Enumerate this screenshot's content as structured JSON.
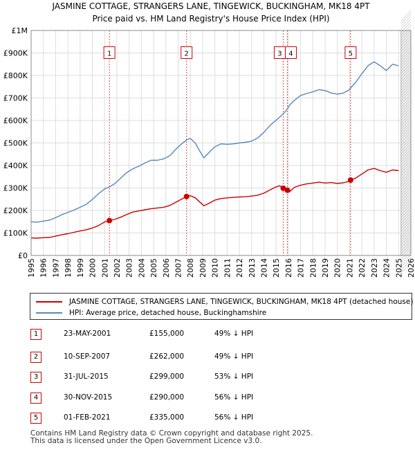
{
  "chart_data": {
    "type": "line",
    "title": "JASMINE COTTAGE, STRANGERS LANE, TINGEWICK, BUCKINGHAM, MK18 4PT",
    "subtitle": "Price paid vs. HM Land Registry's House Price Index (HPI)",
    "xlim": [
      1995,
      2026
    ],
    "ylim": [
      0,
      1000000
    ],
    "x_ticks": [
      "1995",
      "1996",
      "1997",
      "1998",
      "1999",
      "2000",
      "2001",
      "2002",
      "2003",
      "2004",
      "2005",
      "2006",
      "2007",
      "2008",
      "2009",
      "2010",
      "2011",
      "2012",
      "2013",
      "2014",
      "2015",
      "2016",
      "2017",
      "2018",
      "2019",
      "2020",
      "2021",
      "2022",
      "2023",
      "2024",
      "2025",
      "2026"
    ],
    "y_ticks": [
      {
        "value": 0,
        "label": "£0"
      },
      {
        "value": 100000,
        "label": "£100K"
      },
      {
        "value": 200000,
        "label": "£200K"
      },
      {
        "value": 300000,
        "label": "£300K"
      },
      {
        "value": 400000,
        "label": "£400K"
      },
      {
        "value": 500000,
        "label": "£500K"
      },
      {
        "value": 600000,
        "label": "£600K"
      },
      {
        "value": 700000,
        "label": "£700K"
      },
      {
        "value": 800000,
        "label": "£800K"
      },
      {
        "value": 900000,
        "label": "£900K"
      },
      {
        "value": 1000000,
        "label": "£1M"
      }
    ],
    "series": [
      {
        "name": "JASMINE COTTAGE, STRANGERS LANE, TINGEWICK, BUCKINGHAM, MK18 4PT (detached house)",
        "color": "#cc0000",
        "points": [
          [
            1995.0,
            78000
          ],
          [
            1995.5,
            77000
          ],
          [
            1996.0,
            79000
          ],
          [
            1996.5,
            80000
          ],
          [
            1997.0,
            86000
          ],
          [
            1997.5,
            92000
          ],
          [
            1998.0,
            97000
          ],
          [
            1998.5,
            103000
          ],
          [
            1999.0,
            109000
          ],
          [
            1999.5,
            114000
          ],
          [
            2000.0,
            122000
          ],
          [
            2000.5,
            133000
          ],
          [
            2001.0,
            149000
          ],
          [
            2001.4,
            155000
          ],
          [
            2001.8,
            160000
          ],
          [
            2002.3,
            170000
          ],
          [
            2002.8,
            182000
          ],
          [
            2003.3,
            193000
          ],
          [
            2003.8,
            198000
          ],
          [
            2004.3,
            203000
          ],
          [
            2004.8,
            208000
          ],
          [
            2005.3,
            211000
          ],
          [
            2005.8,
            214000
          ],
          [
            2006.3,
            222000
          ],
          [
            2006.8,
            236000
          ],
          [
            2007.2,
            248000
          ],
          [
            2007.7,
            262000
          ],
          [
            2008.0,
            266000
          ],
          [
            2008.4,
            256000
          ],
          [
            2008.8,
            236000
          ],
          [
            2009.1,
            221000
          ],
          [
            2009.5,
            231000
          ],
          [
            2010.0,
            246000
          ],
          [
            2010.5,
            253000
          ],
          [
            2011.0,
            256000
          ],
          [
            2011.5,
            258000
          ],
          [
            2012.0,
            260000
          ],
          [
            2012.5,
            261000
          ],
          [
            2013.0,
            264000
          ],
          [
            2013.5,
            268000
          ],
          [
            2014.0,
            277000
          ],
          [
            2014.5,
            291000
          ],
          [
            2015.0,
            305000
          ],
          [
            2015.3,
            310000
          ],
          [
            2015.58,
            299000
          ],
          [
            2015.75,
            295000
          ],
          [
            2015.92,
            290000
          ],
          [
            2016.1,
            283000
          ],
          [
            2016.5,
            303000
          ],
          [
            2017.0,
            312000
          ],
          [
            2017.5,
            318000
          ],
          [
            2018.0,
            322000
          ],
          [
            2018.5,
            326000
          ],
          [
            2019.0,
            322000
          ],
          [
            2019.5,
            324000
          ],
          [
            2020.0,
            320000
          ],
          [
            2020.5,
            323000
          ],
          [
            2021.0,
            330000
          ],
          [
            2021.08,
            335000
          ],
          [
            2021.5,
            344000
          ],
          [
            2022.0,
            362000
          ],
          [
            2022.5,
            380000
          ],
          [
            2023.0,
            387000
          ],
          [
            2023.5,
            377000
          ],
          [
            2024.0,
            370000
          ],
          [
            2024.5,
            380000
          ],
          [
            2025.0,
            377000
          ]
        ]
      },
      {
        "name": "HPI: Average price, detached house, Buckinghamshire",
        "color": "#5588bb",
        "points": [
          [
            1995.0,
            150000
          ],
          [
            1995.5,
            148000
          ],
          [
            1996.0,
            153000
          ],
          [
            1996.5,
            157000
          ],
          [
            1997.0,
            168000
          ],
          [
            1997.5,
            181000
          ],
          [
            1998.0,
            191000
          ],
          [
            1998.5,
            202000
          ],
          [
            1999.0,
            214000
          ],
          [
            1999.5,
            227000
          ],
          [
            2000.0,
            249000
          ],
          [
            2000.5,
            274000
          ],
          [
            2001.0,
            296000
          ],
          [
            2001.4,
            305000
          ],
          [
            2001.8,
            318000
          ],
          [
            2002.3,
            343000
          ],
          [
            2002.8,
            368000
          ],
          [
            2003.3,
            385000
          ],
          [
            2003.8,
            397000
          ],
          [
            2004.3,
            411000
          ],
          [
            2004.8,
            423000
          ],
          [
            2005.3,
            423000
          ],
          [
            2005.8,
            429000
          ],
          [
            2006.3,
            442000
          ],
          [
            2006.8,
            471000
          ],
          [
            2007.2,
            492000
          ],
          [
            2007.7,
            514000
          ],
          [
            2008.0,
            520000
          ],
          [
            2008.4,
            500000
          ],
          [
            2008.8,
            461000
          ],
          [
            2009.1,
            434000
          ],
          [
            2009.5,
            456000
          ],
          [
            2010.0,
            483000
          ],
          [
            2010.5,
            496000
          ],
          [
            2011.0,
            494000
          ],
          [
            2011.5,
            496000
          ],
          [
            2012.0,
            500000
          ],
          [
            2012.5,
            503000
          ],
          [
            2013.0,
            508000
          ],
          [
            2013.5,
            522000
          ],
          [
            2014.0,
            547000
          ],
          [
            2014.5,
            578000
          ],
          [
            2015.0,
            601000
          ],
          [
            2015.3,
            615000
          ],
          [
            2015.58,
            630000
          ],
          [
            2015.75,
            640000
          ],
          [
            2015.92,
            652000
          ],
          [
            2016.1,
            668000
          ],
          [
            2016.5,
            690000
          ],
          [
            2017.0,
            711000
          ],
          [
            2017.5,
            720000
          ],
          [
            2018.0,
            727000
          ],
          [
            2018.5,
            737000
          ],
          [
            2019.0,
            733000
          ],
          [
            2019.5,
            722000
          ],
          [
            2020.0,
            717000
          ],
          [
            2020.5,
            722000
          ],
          [
            2021.0,
            737000
          ],
          [
            2021.08,
            745000
          ],
          [
            2021.5,
            770000
          ],
          [
            2022.0,
            808000
          ],
          [
            2022.5,
            843000
          ],
          [
            2023.0,
            861000
          ],
          [
            2023.5,
            843000
          ],
          [
            2024.0,
            822000
          ],
          [
            2024.5,
            850000
          ],
          [
            2025.0,
            843000
          ]
        ]
      }
    ],
    "sales": [
      {
        "id": "1",
        "x": 2001.39,
        "price": 155000
      },
      {
        "id": "2",
        "x": 2007.69,
        "price": 262000
      },
      {
        "id": "3",
        "x": 2015.58,
        "price": 299000
      },
      {
        "id": "4",
        "x": 2015.92,
        "price": 290000
      },
      {
        "id": "5",
        "x": 2021.08,
        "price": 335000
      }
    ],
    "future_from": 2025.2
  },
  "legend": {
    "property_label": "JASMINE COTTAGE, STRANGERS LANE, TINGEWICK, BUCKINGHAM, MK18 4PT (detached house)",
    "hpi_label": "HPI: Average price, detached house, Buckinghamshire"
  },
  "table": {
    "rows": [
      {
        "num": "1",
        "date": "23-MAY-2001",
        "price": "£155,000",
        "hpi": "49% ↓ HPI"
      },
      {
        "num": "2",
        "date": "10-SEP-2007",
        "price": "£262,000",
        "hpi": "49% ↓ HPI"
      },
      {
        "num": "3",
        "date": "31-JUL-2015",
        "price": "£299,000",
        "hpi": "53% ↓ HPI"
      },
      {
        "num": "4",
        "date": "30-NOV-2015",
        "price": "£290,000",
        "hpi": "56% ↓ HPI"
      },
      {
        "num": "5",
        "date": "01-FEB-2021",
        "price": "£335,000",
        "hpi": "56% ↓ HPI"
      }
    ]
  },
  "footer": {
    "line1": "Contains HM Land Registry data © Crown copyright and database right 2025.",
    "line2": "This data is licensed under the Open Government Licence v3.0."
  }
}
